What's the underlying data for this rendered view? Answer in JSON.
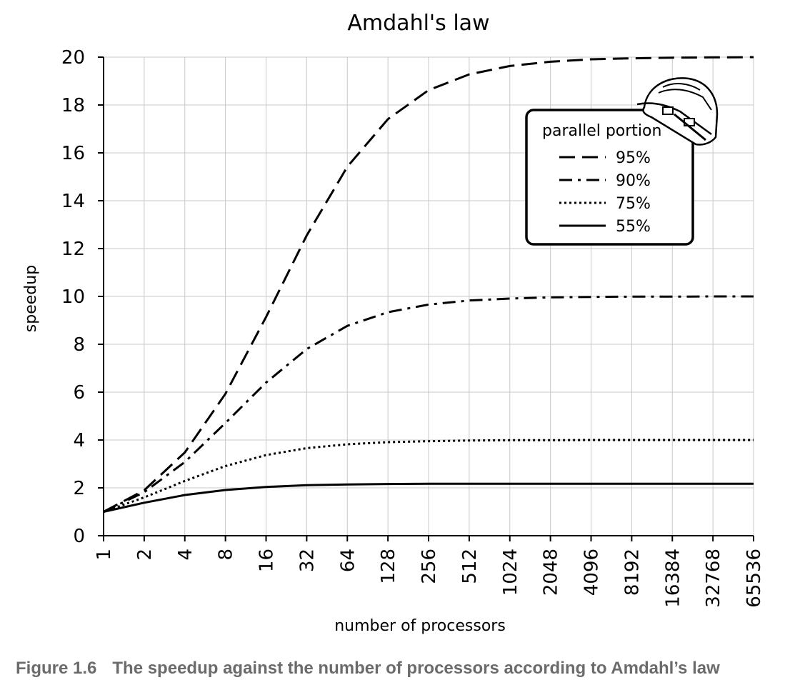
{
  "chart_data": {
    "type": "line",
    "title": "Amdahl's law",
    "xlabel": "number of processors",
    "ylabel": "speedup",
    "x_scale": "log2",
    "x": [
      1,
      2,
      4,
      8,
      16,
      32,
      64,
      128,
      256,
      512,
      1024,
      2048,
      4096,
      8192,
      16384,
      32768,
      65536
    ],
    "x_tick_labels": [
      "1",
      "2",
      "4",
      "8",
      "16",
      "32",
      "64",
      "128",
      "256",
      "512",
      "1024",
      "2048",
      "4096",
      "8192",
      "16384",
      "32768",
      "65536"
    ],
    "ylim": [
      0,
      20
    ],
    "y_ticks": [
      0,
      2,
      4,
      6,
      8,
      10,
      12,
      14,
      16,
      18,
      20
    ],
    "grid": true,
    "legend": {
      "title": "parallel portion",
      "placement": "top-right"
    },
    "series": [
      {
        "name": "95%",
        "style": "dashed",
        "values": [
          1,
          1.9,
          3.48,
          5.93,
          9.14,
          12.55,
          15.42,
          17.41,
          18.62,
          19.28,
          19.63,
          19.81,
          19.91,
          19.95,
          19.98,
          19.99,
          20.0
        ]
      },
      {
        "name": "90%",
        "style": "dashdot",
        "values": [
          1,
          1.82,
          3.08,
          4.71,
          6.4,
          7.8,
          8.77,
          9.34,
          9.66,
          9.83,
          9.91,
          9.96,
          9.98,
          9.99,
          9.99,
          10.0,
          10.0
        ]
      },
      {
        "name": "75%",
        "style": "dotted",
        "values": [
          1,
          1.6,
          2.29,
          2.91,
          3.37,
          3.66,
          3.82,
          3.91,
          3.95,
          3.98,
          3.99,
          3.99,
          4.0,
          4.0,
          4.0,
          4.0,
          4.0
        ]
      },
      {
        "name": "55%",
        "style": "solid",
        "values": [
          1,
          1.38,
          1.7,
          1.91,
          2.04,
          2.11,
          2.14,
          2.16,
          2.17,
          2.17,
          2.17,
          2.17,
          2.17,
          2.17,
          2.17,
          2.17,
          2.17
        ]
      }
    ]
  },
  "caption": {
    "number": "Figure 1.6",
    "text": "The speedup against the number of processors according to Amdahl’s law"
  }
}
